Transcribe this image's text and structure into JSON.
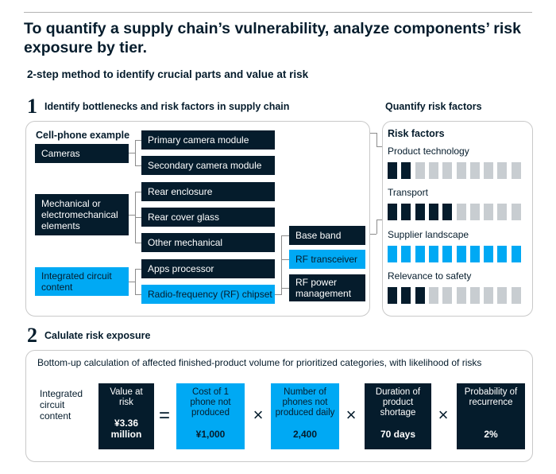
{
  "title": "To quantify a supply chain’s vulnerability, analyze components’ risk exposure by tier.",
  "subtitle": "2-step method to identify crucial parts and value at risk",
  "step1": {
    "number": "1",
    "label": "Identify bottlenecks and risk factors in supply chain"
  },
  "quantify_label": "Quantify risk factors",
  "example_label": "Cell-phone example",
  "tier1": [
    "Cameras",
    "Mechanical or electromechanical elements",
    "Integrated circuit content"
  ],
  "tier2": [
    "Primary camera module",
    "Secondary camera module",
    "Rear enclosure",
    "Rear cover glass",
    "Other mechanical",
    "Apps processor",
    "Radio-frequency (RF) chipset"
  ],
  "tier3": [
    "Base band",
    "RF transceiver",
    "RF power management"
  ],
  "risk_factors_title": "Risk factors",
  "risk_factors": [
    {
      "name": "Product technology",
      "level": 2,
      "total": 10,
      "color": "dark"
    },
    {
      "name": "Transport",
      "level": 5,
      "total": 10,
      "color": "dark"
    },
    {
      "name": "Supplier landscape",
      "level": 10,
      "total": 10,
      "color": "blue"
    },
    {
      "name": "Relevance to safety",
      "level": 3,
      "total": 10,
      "color": "dark"
    }
  ],
  "step2": {
    "number": "2",
    "label": "Calulate risk exposure"
  },
  "calc": {
    "description": "Bottom-up calculation of affected finished-product volume for prioritized categories, with likelihood of risks",
    "category": "Integrated circuit content",
    "result": {
      "label": "Value at risk",
      "value": "¥3.36 million"
    },
    "equals": "=",
    "times": "×",
    "factors": [
      {
        "label": "Cost of 1 phone not produced",
        "value": "¥1,000"
      },
      {
        "label": "Number of phones not produced daily",
        "value": "2,400"
      },
      {
        "label": "Duration of product shortage",
        "value": "70 days"
      },
      {
        "label": "Probability of recurrence",
        "value": "2%"
      }
    ]
  },
  "colors": {
    "dark": "#051c2c",
    "blue": "#00a9f4",
    "grey": "#c8cdd1"
  }
}
